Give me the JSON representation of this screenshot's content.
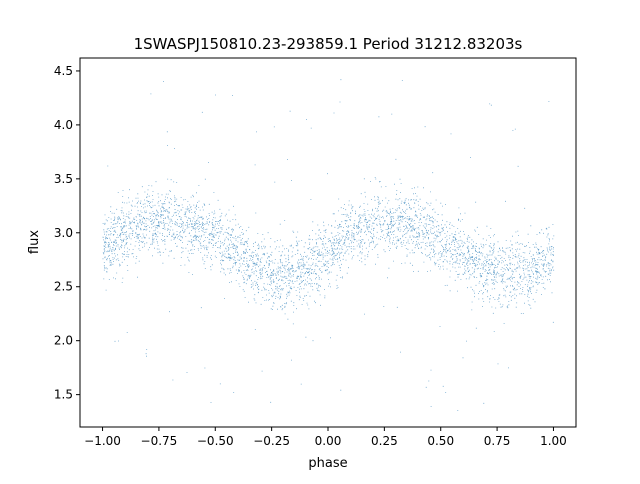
{
  "chart_data": {
    "type": "scatter",
    "title": "1SWASPJ150810.23-293859.1 Period 31212.83203s",
    "xlabel": "phase",
    "ylabel": "flux",
    "xlim": [
      -1.1,
      1.1
    ],
    "ylim": [
      1.2,
      4.62
    ],
    "x_ticks": [
      -1.0,
      -0.75,
      -0.5,
      -0.25,
      0.0,
      0.25,
      0.5,
      0.75,
      1.0
    ],
    "x_tick_labels": [
      "−1.00",
      "−0.75",
      "−0.50",
      "−0.25",
      "0.00",
      "0.25",
      "0.50",
      "0.75",
      "1.00"
    ],
    "y_ticks": [
      1.5,
      2.0,
      2.5,
      3.0,
      3.5,
      4.0,
      4.5
    ],
    "y_tick_labels": [
      "1.5",
      "2.0",
      "2.5",
      "3.0",
      "3.5",
      "4.0",
      "4.5"
    ],
    "grid": false,
    "legend": "none",
    "point_color": "#1f77b4",
    "series": [
      {
        "phase": [
          -1.0,
          -0.9,
          -0.8,
          -0.75,
          -0.7,
          -0.6,
          -0.5,
          -0.4,
          -0.3,
          -0.25,
          -0.2,
          -0.1,
          0.0,
          0.1,
          0.2,
          0.25,
          0.3,
          0.4,
          0.5,
          0.6,
          0.7,
          0.75,
          0.8,
          0.9,
          1.0
        ],
        "flux_mean": [
          2.85,
          3.0,
          3.1,
          3.13,
          3.13,
          3.07,
          2.95,
          2.8,
          2.65,
          2.6,
          2.6,
          2.65,
          2.82,
          2.98,
          3.08,
          3.1,
          3.1,
          3.05,
          2.93,
          2.8,
          2.68,
          2.65,
          2.63,
          2.65,
          2.78
        ],
        "flux_spread": 0.22,
        "approx_points": 30000
      }
    ]
  }
}
